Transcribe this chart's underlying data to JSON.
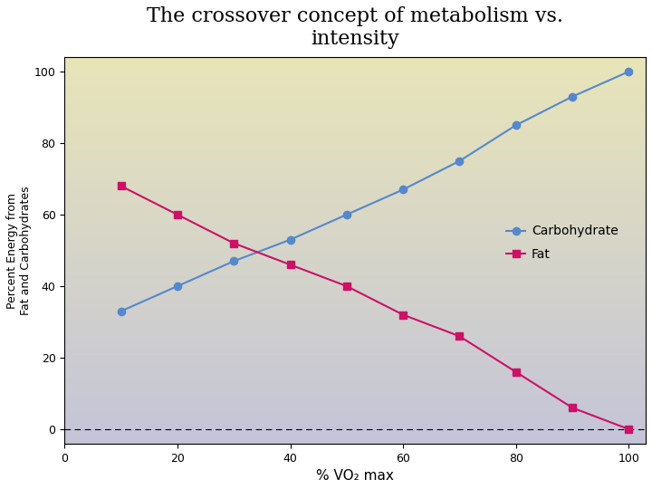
{
  "title_line1": "The crossover concept of metabolism vs.",
  "title_line2": "intensity",
  "xlabel": "% VO₂ max",
  "ylabel": "Percent Energy from\nFat and Carbohydrates",
  "carb_x": [
    10,
    20,
    30,
    40,
    50,
    60,
    70,
    80,
    90,
    100
  ],
  "carb_y": [
    33,
    40,
    47,
    53,
    60,
    67,
    75,
    85,
    93,
    100
  ],
  "fat_x": [
    10,
    20,
    30,
    40,
    50,
    60,
    70,
    80,
    90,
    100
  ],
  "fat_y": [
    68,
    60,
    52,
    46,
    40,
    32,
    26,
    16,
    6,
    0
  ],
  "carb_color": "#5588cc",
  "fat_color": "#cc1166",
  "xlim": [
    0,
    103
  ],
  "ylim": [
    -4,
    104
  ],
  "xticks": [
    0,
    20,
    40,
    60,
    80,
    100
  ],
  "yticks": [
    0,
    20,
    40,
    60,
    80,
    100
  ],
  "bg_outer": "#ffffff",
  "bg_upper": "#e8e5b8",
  "bg_lower": "#c8c8dc",
  "title_fontsize": 16,
  "legend_carb": "Carbohydrate",
  "legend_fat": "Fat"
}
